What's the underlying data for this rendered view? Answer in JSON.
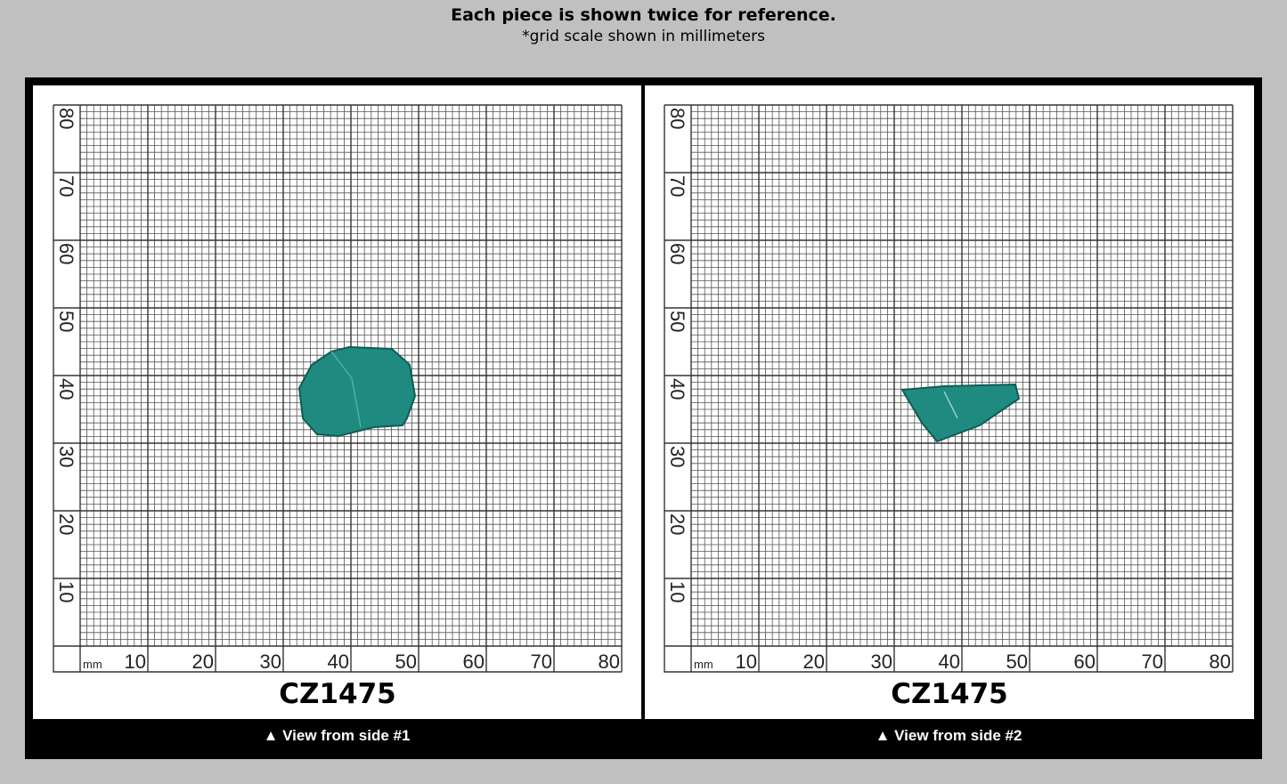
{
  "header": {
    "title": "Each piece is shown twice for reference.",
    "subtitle": "*grid scale shown in millimeters"
  },
  "grid": {
    "unit": "mm",
    "ticks": [
      "10",
      "20",
      "30",
      "40",
      "50",
      "60",
      "70",
      "80"
    ]
  },
  "panels": [
    {
      "code": "CZ1475",
      "caption": "▲ View from side #1"
    },
    {
      "code": "CZ1475",
      "caption": "▲ View from side #2"
    }
  ],
  "colors": {
    "background": "#c0c0c0",
    "frame": "#000000",
    "gem": "#1f8a80"
  }
}
